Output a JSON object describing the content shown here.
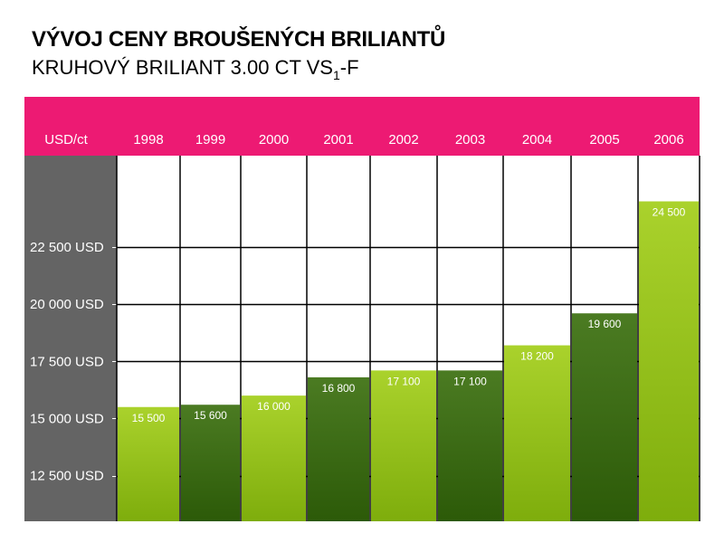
{
  "title": "VÝVOJ CENY BROUŠENÝCH BRILIANTŮ",
  "subtitle_main": "KRUHOVÝ BRILIANT 3.00 CT VS",
  "subtitle_sub": "1",
  "subtitle_end": "-F",
  "colors": {
    "header": "#ed1a73",
    "axis_panel": "#646464",
    "light_bar_top": "#aad22c",
    "light_bar_bottom": "#7ead0c",
    "dark_bar_top": "#4b7b22",
    "dark_bar_bottom": "#2c5a08",
    "grid": "#000000"
  },
  "chart_data": {
    "type": "bar",
    "unit_label": "USD/ct",
    "categories": [
      "1998",
      "1999",
      "2000",
      "2001",
      "2002",
      "2003",
      "2004",
      "2005",
      "2006"
    ],
    "values": [
      15500,
      15600,
      16000,
      16800,
      17100,
      17100,
      18200,
      19600,
      24500
    ],
    "data_labels": [
      "15 500",
      "15 600",
      "16 000",
      "16 800",
      "17 100",
      "17 100",
      "18 200",
      "19 600",
      "24 500"
    ],
    "bar_styles": [
      "light",
      "dark",
      "light",
      "dark",
      "light",
      "dark",
      "light",
      "dark",
      "light"
    ],
    "y_ticks": [
      12500,
      15000,
      17500,
      20000,
      22500
    ],
    "y_tick_labels": [
      "12 500 USD",
      "15 000 USD",
      "17 500 USD",
      "20 000 USD",
      "22 500 USD"
    ],
    "ylim": [
      10500,
      26500
    ],
    "grid": true
  }
}
